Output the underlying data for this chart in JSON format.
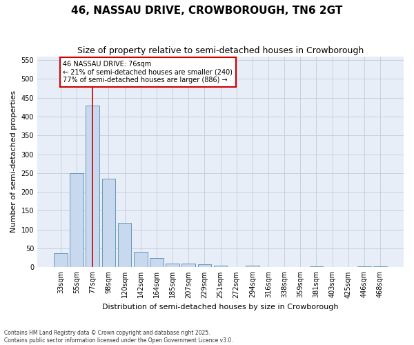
{
  "title": "46, NASSAU DRIVE, CROWBOROUGH, TN6 2GT",
  "subtitle": "Size of property relative to semi-detached houses in Crowborough",
  "xlabel": "Distribution of semi-detached houses by size in Crowborough",
  "ylabel": "Number of semi-detached properties",
  "footnote1": "Contains HM Land Registry data © Crown copyright and database right 2025.",
  "footnote2": "Contains public sector information licensed under the Open Government Licence v3.0.",
  "annotation_title": "46 NASSAU DRIVE: 76sqm",
  "annotation_line1": "← 21% of semi-detached houses are smaller (240)",
  "annotation_line2": "77% of semi-detached houses are larger (886) →",
  "bar_color": "#c8d8ee",
  "bar_edge_color": "#6699bb",
  "vline_color": "#cc0000",
  "annotation_box_edgecolor": "#cc0000",
  "fig_facecolor": "#ffffff",
  "ax_facecolor": "#e8eef8",
  "grid_color": "#c4ccd8",
  "categories": [
    "33sqm",
    "55sqm",
    "77sqm",
    "98sqm",
    "120sqm",
    "142sqm",
    "164sqm",
    "185sqm",
    "207sqm",
    "229sqm",
    "251sqm",
    "272sqm",
    "294sqm",
    "316sqm",
    "338sqm",
    "359sqm",
    "381sqm",
    "403sqm",
    "425sqm",
    "446sqm",
    "468sqm"
  ],
  "values": [
    38,
    250,
    430,
    235,
    118,
    40,
    25,
    10,
    10,
    7,
    4,
    0,
    4,
    0,
    0,
    0,
    3,
    0,
    0,
    3,
    3
  ],
  "ylim": [
    0,
    560
  ],
  "yticks": [
    0,
    50,
    100,
    150,
    200,
    250,
    300,
    350,
    400,
    450,
    500,
    550
  ],
  "vline_x_index": 2,
  "title_fontsize": 11,
  "subtitle_fontsize": 9,
  "axis_label_fontsize": 8,
  "tick_fontsize": 7,
  "annotation_fontsize": 7,
  "footnote_fontsize": 5.5
}
